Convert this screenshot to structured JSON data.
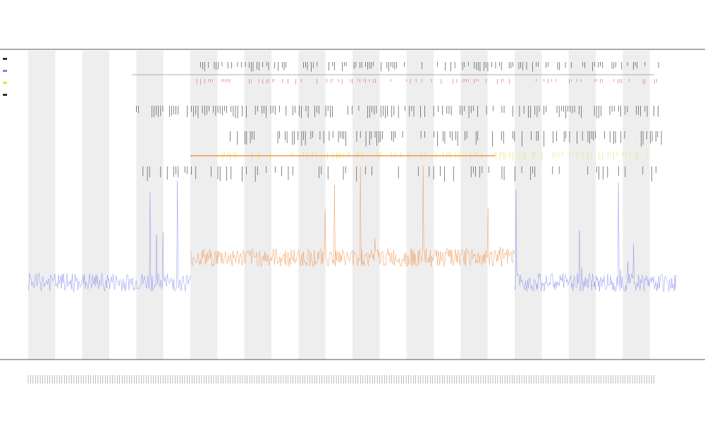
{
  "chart_data": {
    "type": "line",
    "title": "",
    "subtitle_1": "",
    "subtitle_2": "",
    "xlabel": "",
    "ylabel": "",
    "ylim": [
      0,
      10
    ],
    "grid": false,
    "legend_placement": "top-left",
    "legend_entries": [
      "",
      "",
      "",
      ""
    ],
    "colors": {
      "series_low": "#7b7ff0",
      "series_high": "#f08a3c",
      "band_shade": "#eeeeee",
      "rug_black": "#333333",
      "rug_red": "#e85a5a",
      "rug_yellow": "#e6e24a",
      "reference_line": "#f08a3c",
      "axis": "#555555"
    },
    "band_count": 12,
    "reference_level": 6.6,
    "series": [
      {
        "name": "",
        "color_key": "series_low",
        "x_start": 0,
        "x_end": 0.25,
        "level": 2.5
      },
      {
        "name": "",
        "color_key": "series_high",
        "x_start": 0.25,
        "x_end": 0.75,
        "level": 3.3
      },
      {
        "name": "",
        "color_key": "series_low",
        "x_start": 0.75,
        "x_end": 1.0,
        "level": 2.5
      }
    ]
  }
}
